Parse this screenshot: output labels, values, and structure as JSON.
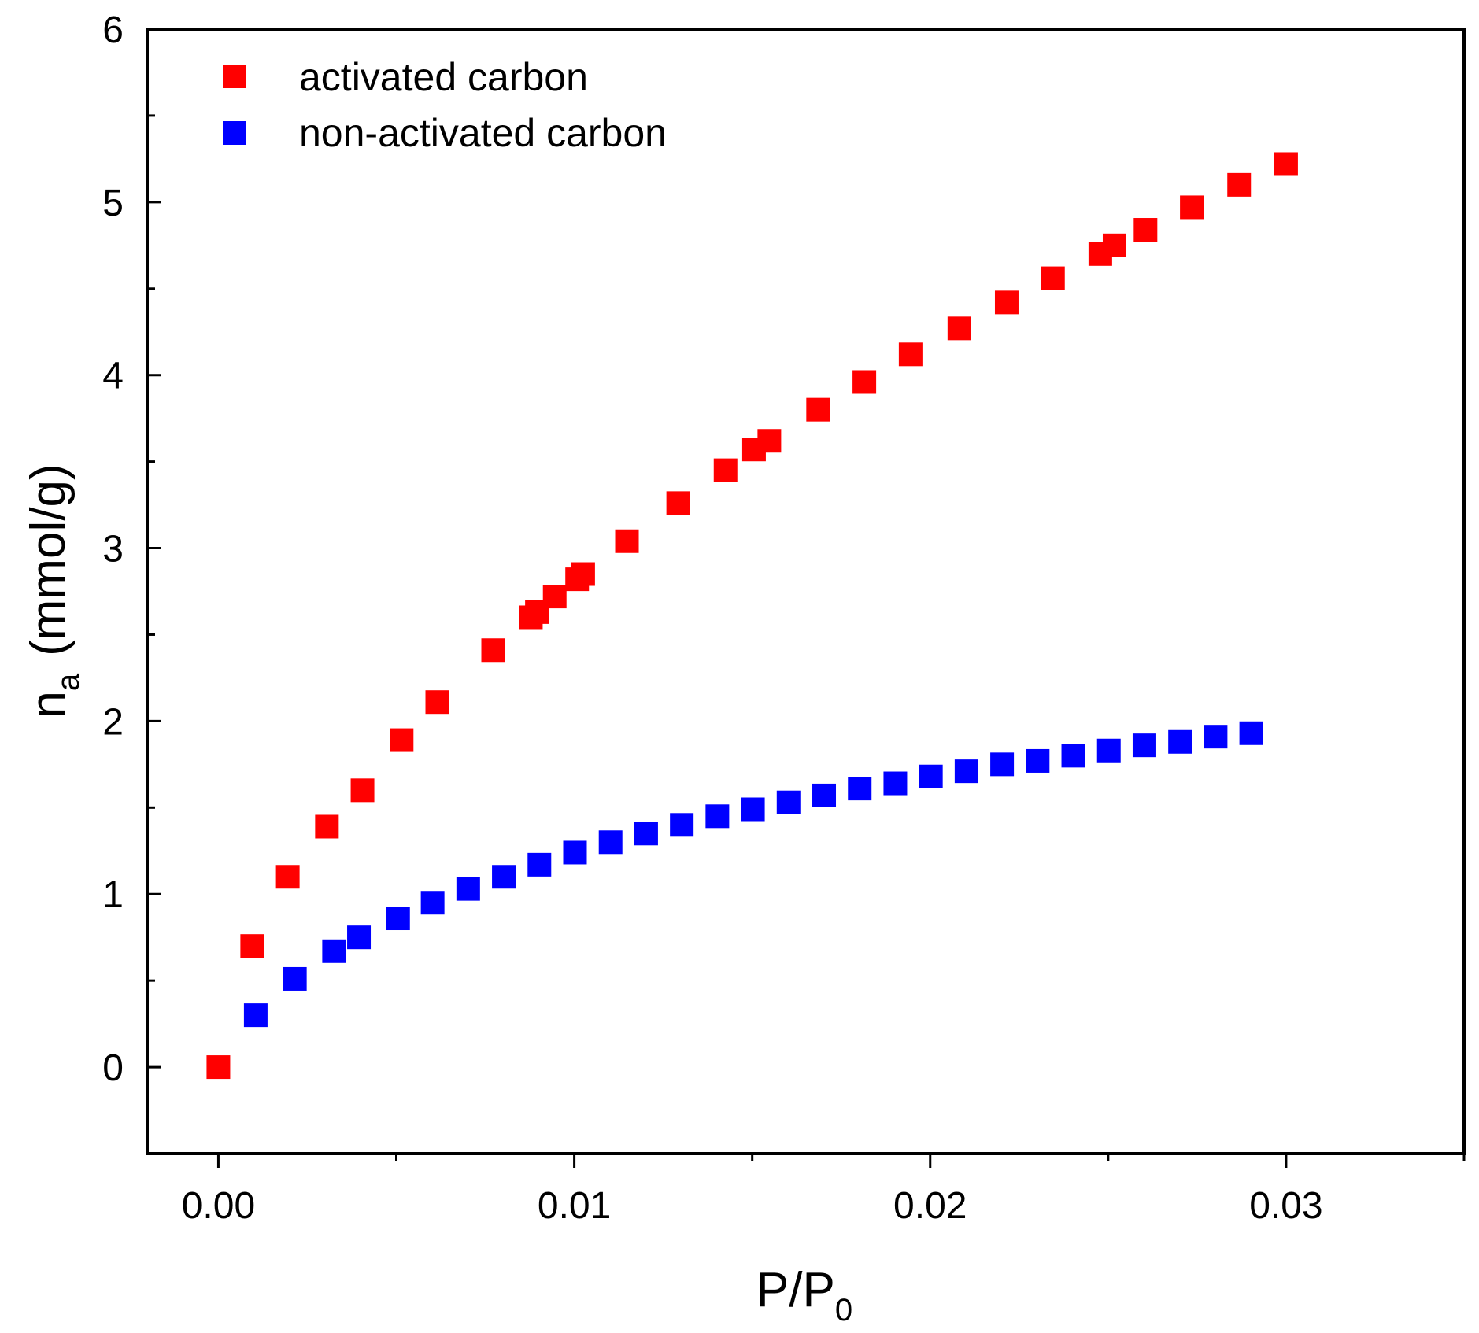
{
  "chart_data": {
    "type": "scatter",
    "title": "",
    "xlabel": "P/P",
    "xlabel_subscript": "0",
    "ylabel_main": "n",
    "ylabel_subscript": "a",
    "ylabel_unit": "(mmol/g)",
    "xlim": [
      -0.002,
      0.035
    ],
    "ylim": [
      -0.5,
      6
    ],
    "x_ticks": [
      0.0,
      0.01,
      0.02,
      0.03
    ],
    "x_tick_labels": [
      "0.00",
      "0.01",
      "0.02",
      "0.03"
    ],
    "y_ticks": [
      0,
      1,
      2,
      3,
      4,
      5,
      6
    ],
    "y_tick_labels": [
      "0",
      "1",
      "2",
      "3",
      "4",
      "5",
      "6"
    ],
    "grid": false,
    "legend_position": "top-left",
    "series": [
      {
        "name": "activated carbon",
        "color": "#ff0000",
        "marker": "square",
        "x": [
          0.0,
          0.00095,
          0.00195,
          0.00305,
          0.00405,
          0.00515,
          0.00615,
          0.00772,
          0.00878,
          0.00895,
          0.00945,
          0.01008,
          0.01025,
          0.01148,
          0.01292,
          0.01425,
          0.01505,
          0.01548,
          0.01685,
          0.01815,
          0.01945,
          0.02082,
          0.02215,
          0.02345,
          0.02478,
          0.02518,
          0.02605,
          0.02735,
          0.02868,
          0.03
        ],
        "y": [
          0.0,
          0.7,
          1.1,
          1.39,
          1.6,
          1.89,
          2.11,
          2.41,
          2.6,
          2.63,
          2.72,
          2.82,
          2.85,
          3.04,
          3.26,
          3.45,
          3.57,
          3.62,
          3.8,
          3.96,
          4.12,
          4.27,
          4.42,
          4.56,
          4.7,
          4.75,
          4.84,
          4.97,
          5.1,
          5.22
        ]
      },
      {
        "name": "non-activated carbon",
        "color": "#0000ff",
        "marker": "square",
        "x": [
          0.00105,
          0.00215,
          0.00325,
          0.00395,
          0.00505,
          0.00602,
          0.00702,
          0.00802,
          0.00902,
          0.01002,
          0.01102,
          0.01202,
          0.01302,
          0.01402,
          0.01502,
          0.01602,
          0.01702,
          0.01802,
          0.01902,
          0.02002,
          0.02102,
          0.02202,
          0.02302,
          0.02402,
          0.02502,
          0.02602,
          0.02702,
          0.02802,
          0.02902
        ],
        "y": [
          0.3,
          0.51,
          0.67,
          0.75,
          0.86,
          0.95,
          1.03,
          1.1,
          1.17,
          1.24,
          1.3,
          1.35,
          1.4,
          1.45,
          1.49,
          1.53,
          1.57,
          1.61,
          1.64,
          1.68,
          1.71,
          1.75,
          1.77,
          1.8,
          1.83,
          1.86,
          1.88,
          1.91,
          1.93
        ]
      }
    ]
  }
}
